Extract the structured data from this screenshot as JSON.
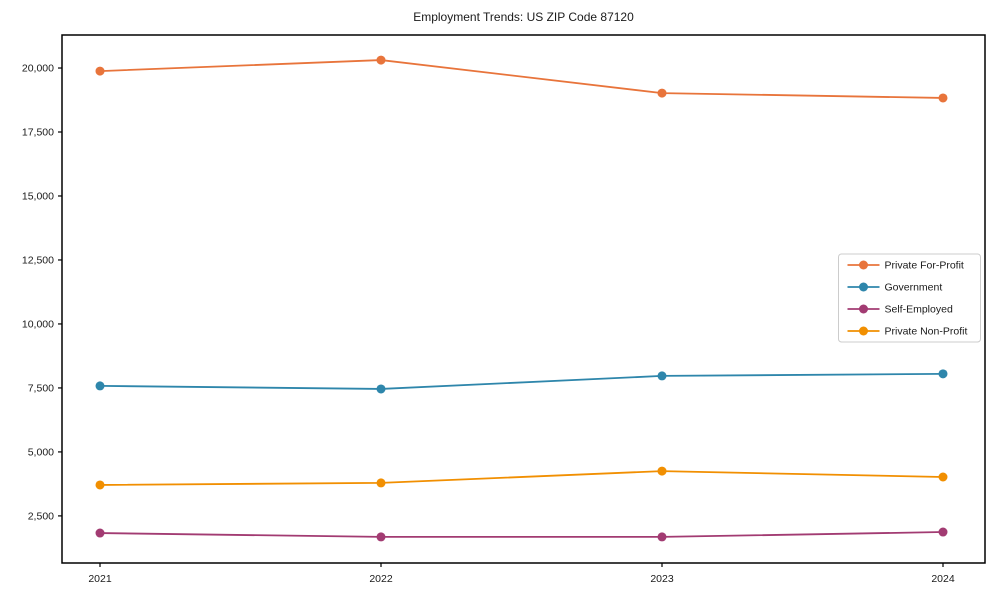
{
  "page": {
    "title": "Employment Trends: US ZIP Code 87120"
  },
  "chart_data": {
    "type": "line",
    "title": "Employment Trends: US ZIP Code 87120",
    "x": [
      "2021",
      "2022",
      "2023",
      "2024"
    ],
    "series": [
      {
        "name": "Private For-Profit",
        "color": "#E8743B",
        "values": [
          19880,
          20310,
          19020,
          18830
        ]
      },
      {
        "name": "Government",
        "color": "#2E86AB",
        "values": [
          7580,
          7460,
          7970,
          8050
        ]
      },
      {
        "name": "Self-Employed",
        "color": "#A23B72",
        "values": [
          1830,
          1680,
          1680,
          1870
        ]
      },
      {
        "name": "Private Non-Profit",
        "color": "#F18F01",
        "values": [
          3710,
          3790,
          4250,
          4020
        ]
      }
    ],
    "yticks": [
      {
        "value": 2500,
        "label": "2,500"
      },
      {
        "value": 5000,
        "label": "5,000"
      },
      {
        "value": 7500,
        "label": "7,500"
      },
      {
        "value": 10000,
        "label": "10,000"
      },
      {
        "value": 12500,
        "label": "12,500"
      },
      {
        "value": 15000,
        "label": "15,000"
      },
      {
        "value": 17500,
        "label": "17,500"
      },
      {
        "value": 20000,
        "label": "20,000"
      }
    ],
    "ylim": [
      660,
      21290
    ],
    "xlabel": "",
    "ylabel": "",
    "grid": false,
    "legend_position": "center-right",
    "marker": "circle",
    "text_color": "#1a1a1a",
    "axis_color": "#000000",
    "legend_border_color": "#cccccc"
  }
}
